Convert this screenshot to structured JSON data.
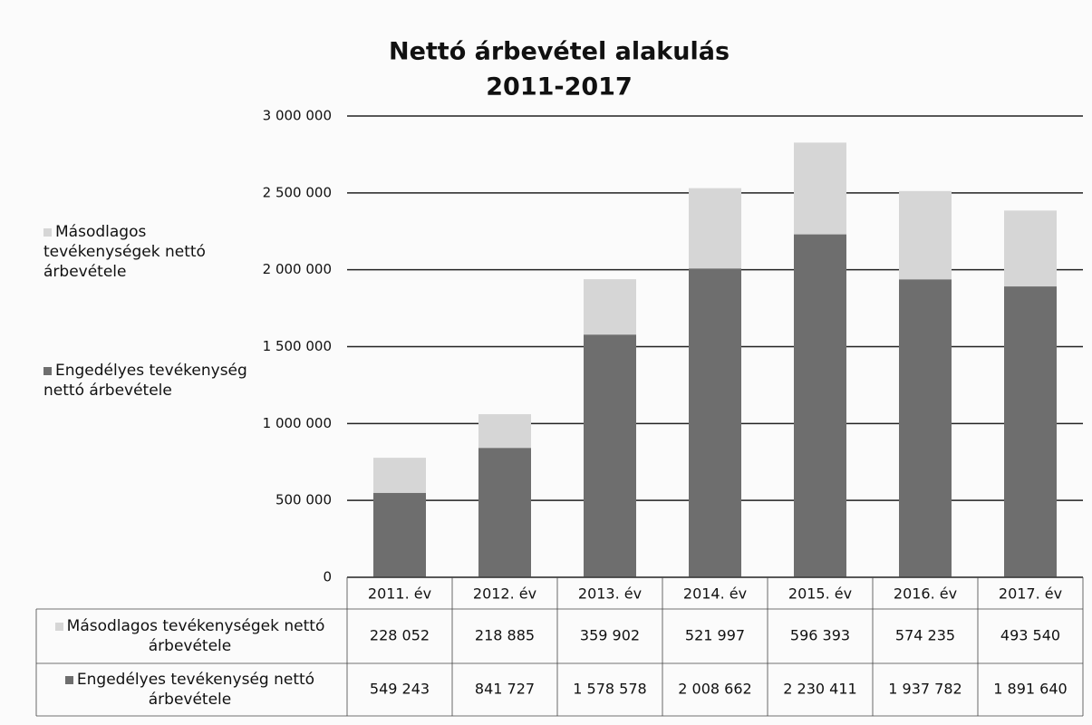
{
  "chart_data": {
    "type": "stacked_bar",
    "title": [
      "Nettó árbevétel alakulás",
      "2011-2017"
    ],
    "categories": [
      "2011. év",
      "2012. év",
      "2013. év",
      "2014. év",
      "2015. év",
      "2016. év",
      "2017. év"
    ],
    "series": [
      {
        "name": "Másodlagos tevékenységek nettó árbevétele",
        "color": "#d6d6d6",
        "values": [
          228052,
          218885,
          359902,
          521997,
          596393,
          574235,
          493540
        ],
        "value_labels": [
          "228 052",
          "218 885",
          "359 902",
          "521 997",
          "596 393",
          "574 235",
          "493 540"
        ]
      },
      {
        "name": "Engedélyes tevékenység nettó árbevétele",
        "color": "#6e6e6e",
        "values": [
          549243,
          841727,
          1578578,
          2008662,
          2230411,
          1937782,
          1891640
        ],
        "value_labels": [
          "549 243",
          "841 727",
          "1 578 578",
          "2 008 662",
          "2 230 411",
          "1 937 782",
          "1 891 640"
        ]
      }
    ],
    "ylim": [
      0,
      3000000
    ],
    "yticks": [
      0,
      {
        "value": 500000,
        "label": "500 000"
      },
      {
        "value": 1000000,
        "label": "1 000 000"
      },
      {
        "value": 1500000,
        "label": "1 500 000"
      },
      {
        "value": 2000000,
        "label": "2 000 000"
      },
      {
        "value": 2500000,
        "label": "2 500 000"
      },
      {
        "value": 3000000,
        "label": "3 000 000"
      }
    ],
    "grid": true
  }
}
